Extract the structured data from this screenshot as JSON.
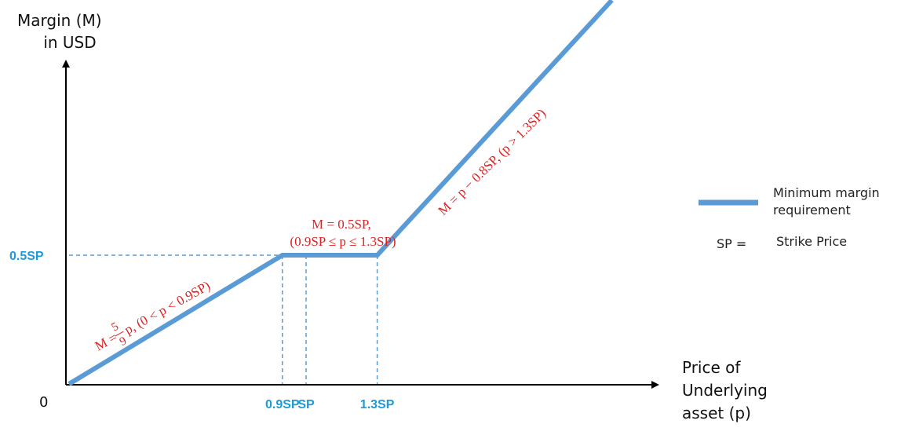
{
  "colors": {
    "line": "#5b9bd5",
    "guide": "#5b9bd5",
    "axis": "#000000",
    "tick_label": "#1e9ad6",
    "formula": "#e02020"
  },
  "chart_data": {
    "type": "line",
    "y_axis_title_lines": [
      "Margin (M)",
      "in USD"
    ],
    "x_axis_title_lines": [
      "Price of",
      "Underlying",
      "asset (p)"
    ],
    "origin_label": "0",
    "x_tick_labels": [
      {
        "value": 0.9,
        "label": "0.9SP"
      },
      {
        "value": 1.0,
        "label": "SP"
      },
      {
        "value": 1.3,
        "label": "1.3SP"
      }
    ],
    "y_tick_labels": [
      {
        "value": 0.5,
        "label": "0.5SP"
      }
    ],
    "series": [
      {
        "name": "Minimum margin requirement",
        "x": [
          0,
          0.9,
          1.3,
          2.29
        ],
        "y": [
          0,
          0.5,
          0.5,
          1.49
        ]
      }
    ],
    "annotations": {
      "segment1": {
        "prefix": "M = ",
        "numerator": "5",
        "denominator": "9",
        "suffix": "p, (0 < p < 0.9SP)"
      },
      "segment2": {
        "line1": "M = 0.5SP,",
        "line2": "(0.9SP ≤ p ≤ 1.3SP)"
      },
      "segment3": {
        "text": "M = p − 0.8SP, (p > 1.3SP)"
      }
    },
    "legend": {
      "line_label_lines": [
        "Minimum margin",
        "requirement"
      ],
      "sp_key": "SP =",
      "sp_value": "Strike Price"
    },
    "grid": false
  }
}
